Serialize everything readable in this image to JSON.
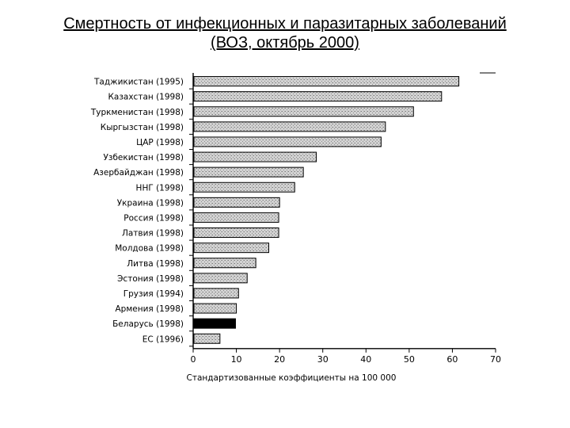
{
  "slide": {
    "title_line1": "Смертность от инфекционных и паразитарных заболеваний",
    "title_line2": "(ВОЗ, октябрь 2000)"
  },
  "chart_data": {
    "type": "bar",
    "orientation": "horizontal",
    "categories": [
      "Таджикистан (1995)",
      "Казахстан (1998)",
      "Туркменистан (1998)",
      "Кыргызстан (1998)",
      "ЦАР (1998)",
      "Узбекистан (1998)",
      "Азербайджан (1998)",
      "ННГ (1998)",
      "Украина (1998)",
      "Россия (1998)",
      "Латвия (1998)",
      "Молдова (1998)",
      "Литва (1998)",
      "Эстония (1998)",
      "Грузия (1994)",
      "Армения (1998)",
      "Беларусь (1998)",
      "ЕС (1996)"
    ],
    "values": [
      61.5,
      57.5,
      51,
      44.5,
      43.5,
      28.5,
      25.5,
      23.5,
      20,
      19.8,
      19.8,
      17.5,
      14.5,
      12.5,
      10.5,
      10,
      9.8,
      6.2
    ],
    "highlight": "Беларусь (1998)",
    "xlabel": "Стандартизованные коэффициенты на 100 000",
    "ylabel": "",
    "xlim": [
      0,
      70
    ],
    "xticks": [
      0,
      10,
      20,
      30,
      40,
      50,
      60,
      70
    ],
    "grid": false,
    "colors": {
      "bar": "#bdbdbd",
      "highlight": "#000000"
    }
  }
}
